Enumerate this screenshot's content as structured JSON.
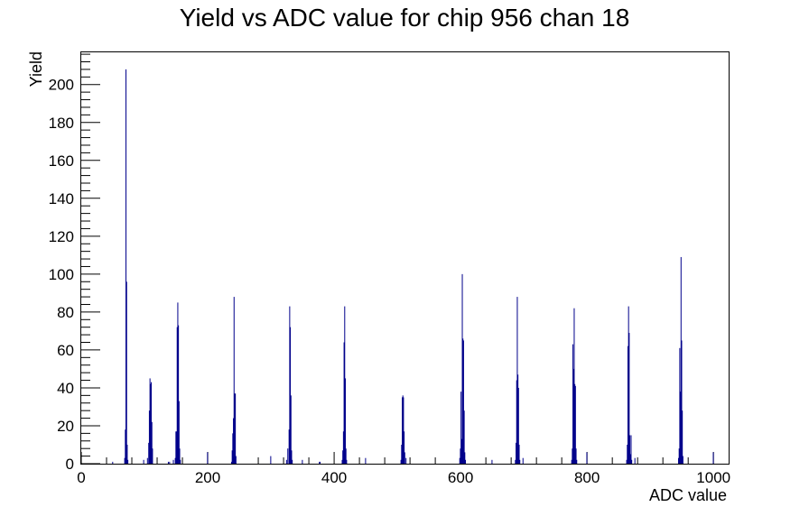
{
  "chart_data": {
    "type": "bar",
    "title": "Yield vs ADC value for chip 956 chan 18",
    "xlabel": "ADC value",
    "ylabel": "Yield",
    "xlim": [
      0,
      1024
    ],
    "ylim": [
      0,
      217
    ],
    "x_ticks": [
      0,
      200,
      400,
      600,
      800,
      1000
    ],
    "y_ticks": [
      0,
      20,
      40,
      60,
      80,
      100,
      120,
      140,
      160,
      180,
      200
    ],
    "bin_width": 1,
    "line_color": "#00008b",
    "grid": false,
    "legend": "none",
    "bins": [
      {
        "x": 49,
        "y": 1
      },
      {
        "x": 68,
        "y": 3
      },
      {
        "x": 69,
        "y": 18
      },
      {
        "x": 70,
        "y": 208
      },
      {
        "x": 71,
        "y": 96
      },
      {
        "x": 72,
        "y": 10
      },
      {
        "x": 73,
        "y": 2
      },
      {
        "x": 98,
        "y": 2
      },
      {
        "x": 104,
        "y": 3
      },
      {
        "x": 106,
        "y": 11
      },
      {
        "x": 107,
        "y": 28
      },
      {
        "x": 108,
        "y": 45
      },
      {
        "x": 109,
        "y": 42
      },
      {
        "x": 110,
        "y": 43
      },
      {
        "x": 111,
        "y": 22
      },
      {
        "x": 112,
        "y": 8
      },
      {
        "x": 137,
        "y": 1
      },
      {
        "x": 139,
        "y": 1
      },
      {
        "x": 145,
        "y": 2
      },
      {
        "x": 148,
        "y": 3
      },
      {
        "x": 149,
        "y": 17
      },
      {
        "x": 150,
        "y": 17
      },
      {
        "x": 151,
        "y": 72
      },
      {
        "x": 152,
        "y": 85
      },
      {
        "x": 153,
        "y": 73
      },
      {
        "x": 154,
        "y": 33
      },
      {
        "x": 155,
        "y": 8
      },
      {
        "x": 156,
        "y": 2
      },
      {
        "x": 199,
        "y": 6
      },
      {
        "x": 237,
        "y": 1
      },
      {
        "x": 238,
        "y": 7
      },
      {
        "x": 239,
        "y": 16
      },
      {
        "x": 240,
        "y": 24
      },
      {
        "x": 241,
        "y": 88
      },
      {
        "x": 242,
        "y": 37
      },
      {
        "x": 243,
        "y": 37
      },
      {
        "x": 244,
        "y": 4
      },
      {
        "x": 299,
        "y": 4
      },
      {
        "x": 324,
        "y": 2
      },
      {
        "x": 326,
        "y": 8
      },
      {
        "x": 328,
        "y": 18
      },
      {
        "x": 329,
        "y": 83
      },
      {
        "x": 330,
        "y": 72
      },
      {
        "x": 331,
        "y": 36
      },
      {
        "x": 332,
        "y": 7
      },
      {
        "x": 333,
        "y": 2
      },
      {
        "x": 349,
        "y": 2
      },
      {
        "x": 376,
        "y": 1
      },
      {
        "x": 377,
        "y": 1
      },
      {
        "x": 412,
        "y": 2
      },
      {
        "x": 413,
        "y": 7
      },
      {
        "x": 414,
        "y": 17
      },
      {
        "x": 415,
        "y": 64
      },
      {
        "x": 416,
        "y": 83
      },
      {
        "x": 417,
        "y": 45
      },
      {
        "x": 418,
        "y": 8
      },
      {
        "x": 419,
        "y": 2
      },
      {
        "x": 449,
        "y": 3
      },
      {
        "x": 505,
        "y": 2
      },
      {
        "x": 506,
        "y": 10
      },
      {
        "x": 507,
        "y": 35
      },
      {
        "x": 508,
        "y": 36
      },
      {
        "x": 509,
        "y": 35
      },
      {
        "x": 510,
        "y": 17
      },
      {
        "x": 511,
        "y": 6
      },
      {
        "x": 513,
        "y": 3
      },
      {
        "x": 598,
        "y": 3
      },
      {
        "x": 599,
        "y": 8
      },
      {
        "x": 600,
        "y": 38
      },
      {
        "x": 601,
        "y": 13
      },
      {
        "x": 602,
        "y": 100
      },
      {
        "x": 603,
        "y": 66
      },
      {
        "x": 604,
        "y": 65
      },
      {
        "x": 605,
        "y": 28
      },
      {
        "x": 606,
        "y": 6
      },
      {
        "x": 607,
        "y": 2
      },
      {
        "x": 649,
        "y": 2
      },
      {
        "x": 686,
        "y": 2
      },
      {
        "x": 687,
        "y": 11
      },
      {
        "x": 688,
        "y": 44
      },
      {
        "x": 689,
        "y": 88
      },
      {
        "x": 690,
        "y": 47
      },
      {
        "x": 691,
        "y": 40
      },
      {
        "x": 692,
        "y": 10
      },
      {
        "x": 693,
        "y": 2
      },
      {
        "x": 698,
        "y": 3
      },
      {
        "x": 775,
        "y": 2
      },
      {
        "x": 776,
        "y": 8
      },
      {
        "x": 777,
        "y": 63
      },
      {
        "x": 778,
        "y": 50
      },
      {
        "x": 779,
        "y": 82
      },
      {
        "x": 780,
        "y": 42
      },
      {
        "x": 781,
        "y": 41
      },
      {
        "x": 782,
        "y": 8
      },
      {
        "x": 783,
        "y": 2
      },
      {
        "x": 799,
        "y": 6
      },
      {
        "x": 862,
        "y": 2
      },
      {
        "x": 863,
        "y": 10
      },
      {
        "x": 864,
        "y": 62
      },
      {
        "x": 865,
        "y": 83
      },
      {
        "x": 866,
        "y": 69
      },
      {
        "x": 867,
        "y": 15
      },
      {
        "x": 868,
        "y": 5
      },
      {
        "x": 869,
        "y": 15
      },
      {
        "x": 870,
        "y": 2
      },
      {
        "x": 875,
        "y": 3
      },
      {
        "x": 944,
        "y": 3
      },
      {
        "x": 945,
        "y": 8
      },
      {
        "x": 946,
        "y": 61
      },
      {
        "x": 947,
        "y": 38
      },
      {
        "x": 948,
        "y": 109
      },
      {
        "x": 949,
        "y": 65
      },
      {
        "x": 950,
        "y": 28
      },
      {
        "x": 951,
        "y": 4
      },
      {
        "x": 999,
        "y": 6
      }
    ]
  }
}
